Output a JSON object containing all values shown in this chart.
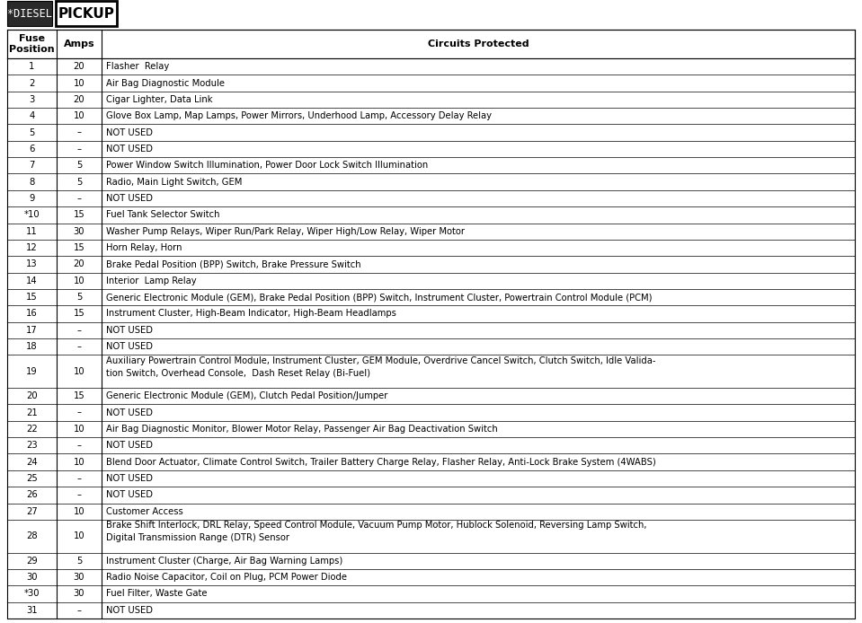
{
  "tag1_text": "*DIESEL",
  "tag2_text": "PICKUP",
  "header": [
    "Fuse\nPosition",
    "Amps",
    "Circuits Protected"
  ],
  "rows": [
    [
      "1",
      "20",
      "Flasher  Relay"
    ],
    [
      "2",
      "10",
      "Air Bag Diagnostic Module"
    ],
    [
      "3",
      "20",
      "Cigar Lighter, Data Link"
    ],
    [
      "4",
      "10",
      "Glove Box Lamp, Map Lamps, Power Mirrors, Underhood Lamp, Accessory Delay Relay"
    ],
    [
      "5",
      "–",
      "NOT USED"
    ],
    [
      "6",
      "–",
      "NOT USED"
    ],
    [
      "7",
      "5",
      "Power Window Switch Illumination, Power Door Lock Switch Illumination"
    ],
    [
      "8",
      "5",
      "Radio, Main Light Switch, GEM"
    ],
    [
      "9",
      "–",
      "NOT USED"
    ],
    [
      "*10",
      "15",
      "Fuel Tank Selector Switch"
    ],
    [
      "11",
      "30",
      "Washer Pump Relays, Wiper Run/Park Relay, Wiper High/Low Relay, Wiper Motor"
    ],
    [
      "12",
      "15",
      "Horn Relay, Horn"
    ],
    [
      "13",
      "20",
      "Brake Pedal Position (BPP) Switch, Brake Pressure Switch"
    ],
    [
      "14",
      "10",
      "Interior  Lamp Relay"
    ],
    [
      "15",
      "5",
      "Generic Electronic Module (GEM), Brake Pedal Position (BPP) Switch, Instrument Cluster, Powertrain Control Module (PCM)"
    ],
    [
      "16",
      "15",
      "Instrument Cluster, High-Beam Indicator, High-Beam Headlamps"
    ],
    [
      "17",
      "–",
      "NOT USED"
    ],
    [
      "18",
      "–",
      "NOT USED"
    ],
    [
      "19",
      "10",
      "Auxiliary Powertrain Control Module, Instrument Cluster, GEM Module, Overdrive Cancel Switch, Clutch Switch, Idle Valida-\ntion Switch, Overhead Console,  Dash Reset Relay (Bi-Fuel)"
    ],
    [
      "20",
      "15",
      "Generic Electronic Module (GEM), Clutch Pedal Position/Jumper"
    ],
    [
      "21",
      "–",
      "NOT USED"
    ],
    [
      "22",
      "10",
      "Air Bag Diagnostic Monitor, Blower Motor Relay, Passenger Air Bag Deactivation Switch"
    ],
    [
      "23",
      "–",
      "NOT USED"
    ],
    [
      "24",
      "10",
      "Blend Door Actuator, Climate Control Switch, Trailer Battery Charge Relay, Flasher Relay, Anti-Lock Brake System (4WABS)"
    ],
    [
      "25",
      "–",
      "NOT USED"
    ],
    [
      "26",
      "–",
      "NOT USED"
    ],
    [
      "27",
      "10",
      "Customer Access"
    ],
    [
      "28",
      "10",
      "Brake Shift Interlock, DRL Relay, Speed Control Module, Vacuum Pump Motor, Hublock Solenoid, Reversing Lamp Switch,\nDigital Transmission Range (DTR) Sensor"
    ],
    [
      "29",
      "5",
      "Instrument Cluster (Charge, Air Bag Warning Lamps)"
    ],
    [
      "30",
      "30",
      "Radio Noise Capacitor, Coil on Plug, PCM Power Diode"
    ],
    [
      "*30",
      "30",
      "Fuel Filter, Waste Gate"
    ],
    [
      "31",
      "–",
      "NOT USED"
    ]
  ],
  "bg_color": "#ffffff",
  "border_color": "#000000",
  "text_color": "#000000",
  "font_size": 7.2,
  "header_font_size": 8.0,
  "tag_font_size": 8.5,
  "pickup_font_size": 11.0
}
